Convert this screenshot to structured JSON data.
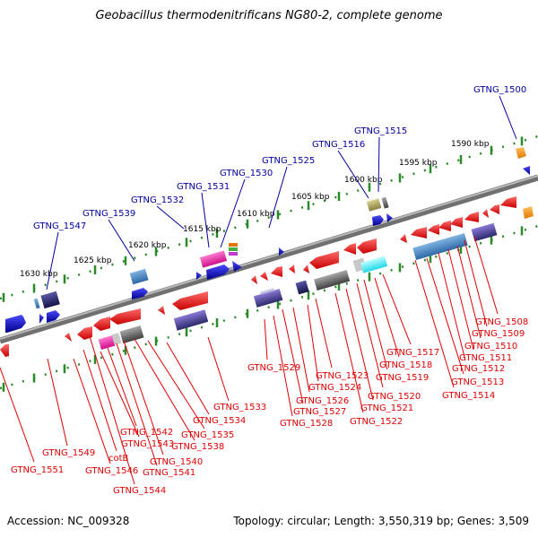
{
  "title": "Geobacillus thermodenitrificans NG80-2, complete genome",
  "footer": {
    "accession": "Accession: NC_009328",
    "summary": "Topology: circular; Length: 3,550,319 bp; Genes: 3,509"
  },
  "colors": {
    "forward_label": "#0000a0",
    "reverse_label": "#e00000",
    "backbone": "#808080",
    "ruler_tick": "#2a8a2a"
  },
  "ruler_labels": [
    "1630 kbp",
    "1625 kbp",
    "1620 kbp",
    "1615 kbp",
    "1610 kbp",
    "1605 kbp",
    "1600 kbp",
    "1595 kbp",
    "1590 kbp"
  ],
  "forward_genes": [
    "GTNG_1547",
    "GTNG_1539",
    "GTNG_1532",
    "GTNG_1531",
    "GTNG_1530",
    "GTNG_1525",
    "GTNG_1516",
    "GTNG_1515",
    "GTNG_1500"
  ],
  "reverse_genes": [
    "GTNG_1551",
    "GTNG_1549",
    "GTNG_1546",
    "cotB",
    "GTNG_1544",
    "GTNG_1543",
    "GTNG_1542",
    "GTNG_1541",
    "GTNG_1540",
    "GTNG_1538",
    "GTNG_1535",
    "GTNG_1534",
    "GTNG_1533",
    "GTNG_1529",
    "GTNG_1528",
    "GTNG_1527",
    "GTNG_1526",
    "GTNG_1524",
    "GTNG_1523",
    "GTNG_1522",
    "GTNG_1521",
    "GTNG_1520",
    "GTNG_1519",
    "GTNG_1518",
    "GTNG_1517",
    "GTNG_1514",
    "GTNG_1513",
    "GTNG_1512",
    "GTNG_1511",
    "GTNG_1510",
    "GTNG_1509",
    "GTNG_1508"
  ]
}
